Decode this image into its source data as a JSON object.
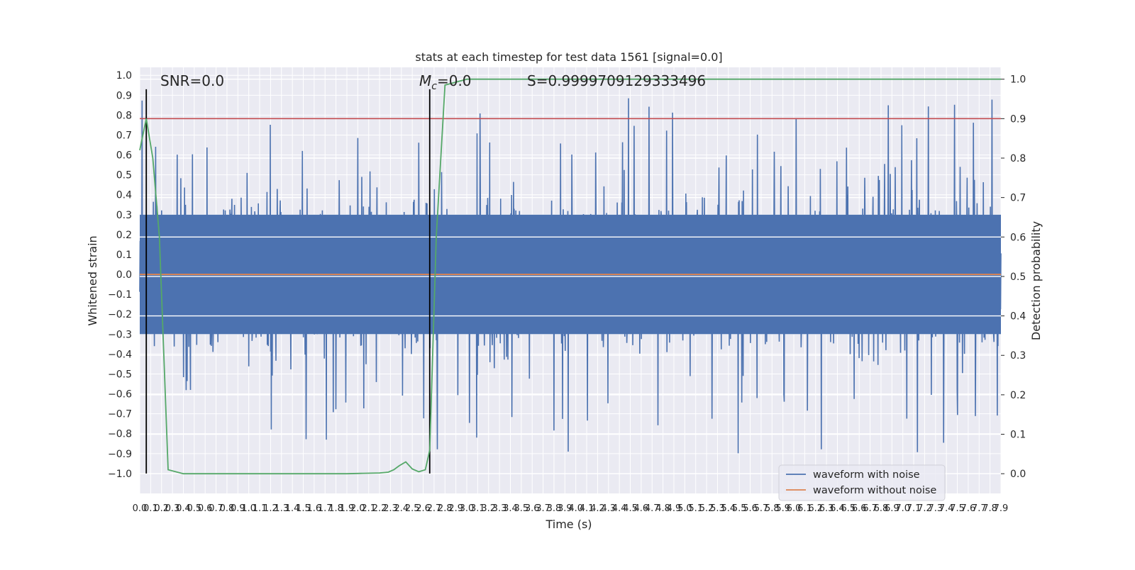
{
  "chart_data": {
    "type": "line",
    "title": "stats at each timestep for test data 1561 [signal=0.0]",
    "xlabel": "Time (s)",
    "ylabel": "Whitened strain",
    "ylabel_right": "Detection probability",
    "xlim": [
      0.0,
      7.9
    ],
    "ylim": [
      -1.1,
      1.04
    ],
    "ylim_right": [
      -0.05,
      1.03
    ],
    "x_ticks": [
      "0.0",
      "0.1",
      "0.2",
      "0.3",
      "0.4",
      "0.5",
      "0.6",
      "0.7",
      "0.8",
      "0.9",
      "1.0",
      "1.1",
      "1.2",
      "1.3",
      "1.4",
      "1.5",
      "1.6",
      "1.7",
      "1.8",
      "1.9",
      "2.0",
      "2.1",
      "2.2",
      "2.3",
      "2.4",
      "2.5",
      "2.6",
      "2.7",
      "2.8",
      "2.9",
      "3.0",
      "3.1",
      "3.2",
      "3.3",
      "3.4",
      "3.5",
      "3.6",
      "3.7",
      "3.8",
      "3.9",
      "4.0",
      "4.1",
      "4.2",
      "4.3",
      "4.4",
      "4.5",
      "4.6",
      "4.7",
      "4.8",
      "4.9",
      "5.0",
      "5.1",
      "5.2",
      "5.3",
      "5.4",
      "5.5",
      "5.6",
      "5.7",
      "5.8",
      "5.9",
      "6.0",
      "6.1",
      "6.2",
      "6.3",
      "6.4",
      "6.5",
      "6.6",
      "6.7",
      "6.8",
      "6.9",
      "7.0",
      "7.1",
      "7.2",
      "7.3",
      "7.4",
      "7.5",
      "7.6",
      "7.7",
      "7.8",
      "7.9"
    ],
    "y_ticks": [
      "−1.0",
      "−0.9",
      "−0.8",
      "−0.7",
      "−0.6",
      "−0.5",
      "−0.4",
      "−0.3",
      "−0.2",
      "−0.1",
      "0.0",
      "0.1",
      "0.2",
      "0.3",
      "0.4",
      "0.5",
      "0.6",
      "0.7",
      "0.8",
      "0.9",
      "1.0"
    ],
    "y_right_ticks": [
      "0.0",
      "0.1",
      "0.2",
      "0.3",
      "0.4",
      "0.5",
      "0.6",
      "0.7",
      "0.8",
      "0.9",
      "1.0"
    ],
    "series": [
      {
        "name": "waveform with noise",
        "color": "#4c72b0",
        "axis": "left",
        "note": "dense noisy strain, roughly ±0.35 core with peaks to ±0.95"
      },
      {
        "name": "waveform without noise",
        "color": "#dd8452",
        "axis": "left",
        "y": 0.0
      },
      {
        "name": "",
        "color": "#55a868",
        "axis": "right",
        "x": [
          0.0,
          0.03,
          0.06,
          0.12,
          0.18,
          0.26,
          0.4,
          0.8,
          1.2,
          1.6,
          1.9,
          2.05,
          2.2,
          2.28,
          2.33,
          2.38,
          2.44,
          2.5,
          2.56,
          2.62,
          2.66,
          2.72,
          2.8,
          3.0,
          4.0,
          5.0,
          6.0,
          7.0,
          7.9
        ],
        "y": [
          0.82,
          0.86,
          0.9,
          0.8,
          0.6,
          0.01,
          0.0,
          0.0,
          0.0,
          0.0,
          0.0,
          0.001,
          0.002,
          0.004,
          0.01,
          0.02,
          0.03,
          0.012,
          0.005,
          0.01,
          0.06,
          0.6,
          0.985,
          1.0,
          1.0,
          1.0,
          1.0,
          1.0,
          1.0
        ]
      }
    ],
    "threshold": {
      "color": "#c44e52",
      "axis": "right",
      "y": 0.9
    },
    "markers": [
      {
        "color": "#000000",
        "x": 0.06,
        "y_range": [
          -1.0,
          0.93
        ]
      },
      {
        "color": "#000000",
        "x": 2.66,
        "y_range": [
          -1.0,
          0.93
        ]
      }
    ],
    "annotations": {
      "snr": "SNR=0.0",
      "mc_symbol": "M",
      "mc_sub": "c",
      "mc_value": "=0.0",
      "s": "S=0.9999709129333496"
    },
    "legend_position": "lower-right",
    "grid": true
  }
}
